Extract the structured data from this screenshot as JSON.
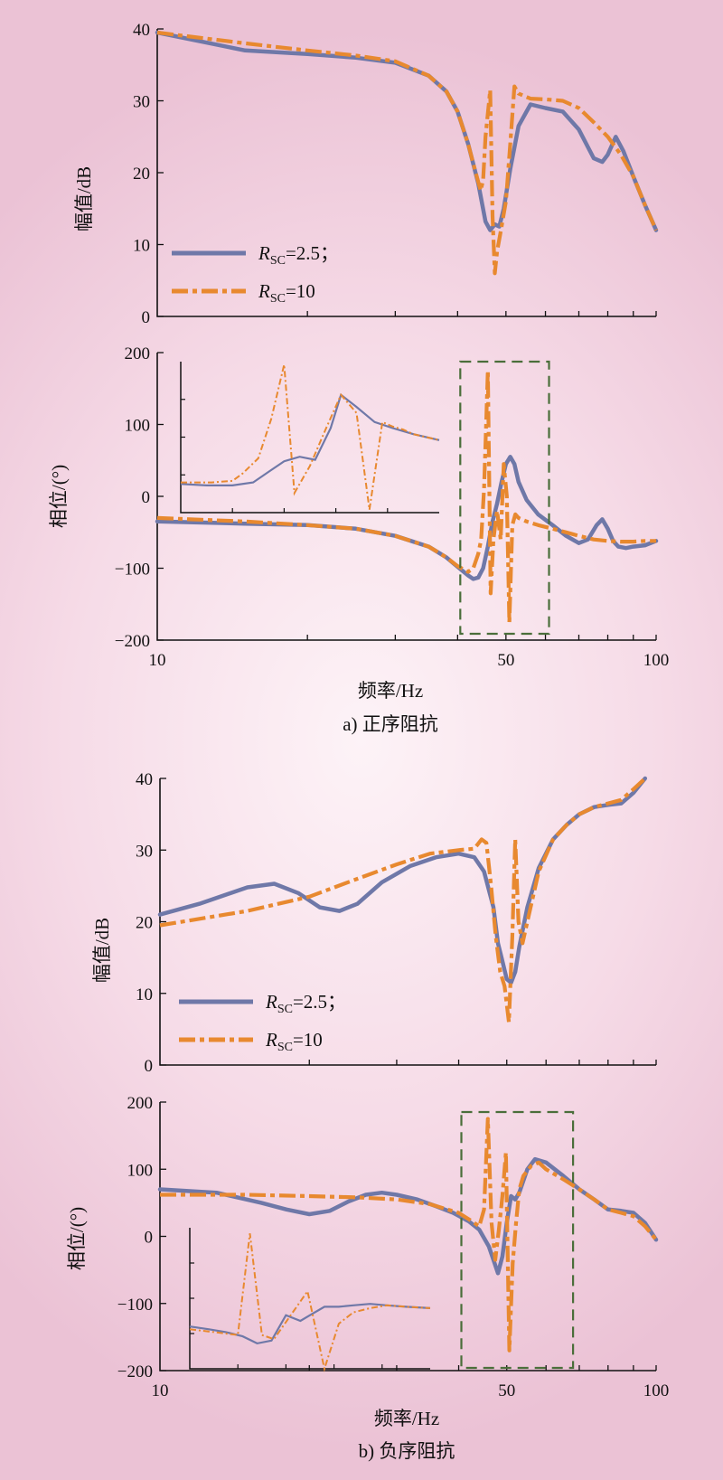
{
  "chart_data": [
    {
      "id": "a-magnitude",
      "type": "line",
      "xscale": "log",
      "xlim": [
        10,
        100
      ],
      "ylim": [
        0,
        40
      ],
      "yticks": [
        "0",
        "10",
        "20",
        "30",
        "40"
      ],
      "ylabel": "幅值/dB",
      "legend": {
        "placement": "bottom-left",
        "entries": [
          {
            "prefix": "R",
            "sub": "SC",
            "suffix": "=2.5；"
          },
          {
            "prefix": "R",
            "sub": "SC",
            "suffix": "=10"
          }
        ]
      },
      "series": [
        {
          "color": "#6f78a8",
          "style": "solid",
          "x": [
            10,
            15,
            20,
            25,
            30,
            35,
            38,
            40,
            42,
            44,
            45.5,
            46.5,
            47.5,
            48.5,
            49.5,
            51,
            53,
            56,
            60,
            65,
            70,
            75,
            78,
            80,
            83,
            86,
            90,
            95,
            100
          ],
          "y": [
            39.5,
            37.0,
            36.5,
            36.0,
            35.3,
            33.5,
            31.3,
            28.5,
            24.0,
            18.5,
            13.2,
            12.0,
            12.8,
            12.5,
            15.0,
            20.5,
            26.5,
            29.5,
            29.0,
            28.5,
            26.0,
            22.0,
            21.5,
            22.5,
            25.0,
            23.0,
            19.5,
            15.5,
            12.0
          ]
        },
        {
          "color": "#e8892f",
          "style": "dashdot",
          "x": [
            10,
            15,
            20,
            25,
            30,
            35,
            38,
            40,
            42,
            43.5,
            44.5,
            45,
            45.5,
            46.5,
            47,
            47.5,
            48,
            49,
            50,
            51,
            52,
            53,
            56,
            60,
            65,
            70,
            75,
            80,
            85,
            90,
            95,
            100
          ],
          "y": [
            39.5,
            38.0,
            37.0,
            36.3,
            35.5,
            33.5,
            31.3,
            28.5,
            24.0,
            20.0,
            17.5,
            19.0,
            25.0,
            31.5,
            14.0,
            6.0,
            9.0,
            12.5,
            16.0,
            24.0,
            32.0,
            31.0,
            30.3,
            30.2,
            30.0,
            29.0,
            27.0,
            25.0,
            22.5,
            19.5,
            15.5,
            12.0
          ]
        }
      ]
    },
    {
      "id": "a-phase",
      "type": "line",
      "xscale": "log",
      "xlim": [
        10,
        100
      ],
      "ylim": [
        -200,
        200
      ],
      "yticks": [
        "−200",
        "−100",
        "0",
        "100",
        "200"
      ],
      "xticks": [
        "10",
        "50",
        "100"
      ],
      "ylabel": "相位/(°)",
      "xlabel": "频率/Hz",
      "caption": "a) 正序阻抗",
      "series": [
        {
          "color": "#6f78a8",
          "style": "solid",
          "x": [
            10,
            15,
            20,
            25,
            30,
            35,
            38,
            40,
            42,
            43,
            44,
            45,
            46,
            47,
            48,
            49,
            50,
            51,
            52,
            53,
            55,
            58,
            62,
            66,
            70,
            73,
            76,
            78,
            80,
            82,
            84,
            87,
            90,
            95,
            100
          ],
          "y": [
            -35,
            -38,
            -40,
            -45,
            -55,
            -70,
            -85,
            -98,
            -110,
            -115,
            -113,
            -100,
            -70,
            -35,
            -10,
            20,
            45,
            55,
            45,
            20,
            -5,
            -25,
            -40,
            -55,
            -65,
            -60,
            -40,
            -32,
            -45,
            -62,
            -70,
            -72,
            -70,
            -68,
            -62
          ]
        },
        {
          "color": "#e8892f",
          "style": "dashdot",
          "x": [
            10,
            15,
            20,
            25,
            30,
            35,
            38,
            40,
            42,
            43,
            44,
            44.6,
            45.2,
            46,
            46.6,
            47.2,
            48,
            48.8,
            49.5,
            50.2,
            50.8,
            51.5,
            52.2,
            53,
            55,
            58,
            62,
            66,
            70,
            75,
            80,
            85,
            90,
            95,
            100
          ],
          "y": [
            -30,
            -35,
            -40,
            -45,
            -55,
            -70,
            -85,
            -97,
            -105,
            -100,
            -80,
            -60,
            10,
            175,
            -135,
            -60,
            -20,
            -60,
            45,
            0,
            -175,
            -40,
            -25,
            -30,
            -35,
            -40,
            -45,
            -50,
            -55,
            -60,
            -62,
            -63,
            -63,
            -62,
            -62
          ]
        }
      ],
      "inset": {
        "series": [
          {
            "color": "#6f78a8",
            "style": "solid",
            "x": [
              0,
              0.1,
              0.2,
              0.28,
              0.34,
              0.4,
              0.46,
              0.52,
              0.58,
              0.62,
              0.68,
              0.75,
              0.82,
              0.9,
              1.0
            ],
            "y": [
              0.19,
              0.18,
              0.18,
              0.2,
              0.27,
              0.34,
              0.37,
              0.35,
              0.56,
              0.78,
              0.7,
              0.6,
              0.56,
              0.52,
              0.48
            ]
          },
          {
            "color": "#e8892f",
            "style": "dashdot",
            "x": [
              0,
              0.12,
              0.2,
              0.24,
              0.3,
              0.35,
              0.4,
              0.44,
              0.5,
              0.56,
              0.62,
              0.68,
              0.73,
              0.78,
              0.82,
              0.86,
              0.9,
              1.0
            ],
            "y": [
              0.2,
              0.2,
              0.21,
              0.26,
              0.36,
              0.62,
              0.98,
              0.13,
              0.31,
              0.55,
              0.78,
              0.66,
              0.02,
              0.6,
              0.57,
              0.55,
              0.52,
              0.48
            ]
          }
        ]
      },
      "zoom_box_x": [
        40.5,
        61
      ]
    },
    {
      "id": "b-magnitude",
      "type": "line",
      "xscale": "log",
      "xlim": [
        10,
        100
      ],
      "ylim": [
        0,
        40
      ],
      "yticks": [
        "0",
        "10",
        "20",
        "30",
        "40"
      ],
      "ylabel": "幅值/dB",
      "legend": {
        "placement": "bottom-left",
        "entries": [
          {
            "prefix": "R",
            "sub": "SC",
            "suffix": "=2.5；"
          },
          {
            "prefix": "R",
            "sub": "SC",
            "suffix": "=10"
          }
        ]
      },
      "series": [
        {
          "color": "#6f78a8",
          "style": "solid",
          "x": [
            10,
            12,
            15,
            17,
            19,
            21,
            23,
            25,
            28,
            32,
            36,
            40,
            43,
            45,
            47,
            48,
            49,
            50,
            51,
            52,
            53,
            55,
            58,
            62,
            66,
            70,
            75,
            80,
            85,
            90,
            95
          ],
          "y": [
            21.0,
            22.5,
            24.8,
            25.3,
            24.0,
            22.0,
            21.5,
            22.5,
            25.5,
            27.8,
            29.0,
            29.5,
            29.0,
            27.0,
            22.0,
            17.0,
            14.5,
            12.0,
            11.5,
            13.0,
            16.5,
            22.0,
            27.5,
            31.5,
            33.5,
            35.0,
            36.0,
            36.3,
            36.5,
            38.0,
            40.0
          ]
        },
        {
          "color": "#e8892f",
          "style": "dashdot",
          "x": [
            10,
            15,
            20,
            25,
            30,
            35,
            40,
            43,
            44.5,
            45.5,
            46.5,
            47.5,
            48.5,
            49.5,
            50.5,
            51.3,
            52,
            52.8,
            53.8,
            55,
            58,
            62,
            66,
            70,
            75,
            80,
            85,
            90,
            95
          ],
          "y": [
            19.5,
            21.5,
            23.5,
            26.0,
            28.0,
            29.5,
            30.0,
            30.2,
            31.5,
            31.0,
            25.0,
            18.0,
            13.0,
            11.0,
            6.0,
            18.0,
            31.5,
            20.0,
            17.0,
            20.0,
            27.0,
            31.5,
            33.5,
            35.0,
            36.0,
            36.5,
            37.0,
            38.5,
            40.0
          ]
        }
      ]
    },
    {
      "id": "b-phase",
      "type": "line",
      "xscale": "log",
      "xlim": [
        10,
        100
      ],
      "ylim": [
        -200,
        200
      ],
      "yticks": [
        "−200",
        "−100",
        "0",
        "100",
        "200"
      ],
      "xticks": [
        "10",
        "50",
        "100"
      ],
      "ylabel": "相位/(°)",
      "xlabel": "频率/Hz",
      "caption": "b) 负序阻抗",
      "series": [
        {
          "color": "#6f78a8",
          "style": "solid",
          "x": [
            10,
            13,
            16,
            18,
            20,
            22,
            24,
            26,
            28,
            30,
            33,
            36,
            39,
            42,
            44,
            46,
            47,
            48,
            49,
            50,
            51,
            52,
            53,
            55,
            57,
            60,
            65,
            70,
            75,
            80,
            85,
            90,
            95,
            100
          ],
          "y": [
            70,
            65,
            50,
            40,
            33,
            38,
            52,
            62,
            65,
            62,
            55,
            45,
            35,
            22,
            10,
            -15,
            -35,
            -55,
            -30,
            20,
            60,
            55,
            65,
            100,
            115,
            110,
            90,
            70,
            55,
            40,
            38,
            35,
            20,
            -5
          ]
        },
        {
          "color": "#e8892f",
          "style": "dashdot",
          "x": [
            10,
            15,
            20,
            25,
            30,
            35,
            40,
            42,
            44,
            45,
            45.8,
            46.6,
            47.4,
            48.2,
            49,
            49.8,
            50.6,
            51.4,
            52.2,
            53,
            54,
            56,
            58,
            60,
            65,
            70,
            75,
            80,
            85,
            90,
            95,
            100
          ],
          "y": [
            62,
            62,
            60,
            58,
            55,
            48,
            35,
            25,
            15,
            40,
            175,
            20,
            -35,
            10,
            60,
            125,
            -170,
            -40,
            20,
            70,
            90,
            105,
            110,
            100,
            85,
            70,
            55,
            40,
            35,
            30,
            15,
            -5
          ]
        }
      ],
      "inset": {
        "series": [
          {
            "color": "#6f78a8",
            "style": "solid",
            "x": [
              0,
              0.08,
              0.15,
              0.22,
              0.28,
              0.34,
              0.4,
              0.46,
              0.5,
              0.56,
              0.62,
              0.68,
              0.75,
              0.82,
              0.9,
              1.0
            ],
            "y": [
              0.3,
              0.28,
              0.26,
              0.23,
              0.18,
              0.2,
              0.38,
              0.34,
              0.38,
              0.44,
              0.44,
              0.45,
              0.46,
              0.45,
              0.44,
              0.43
            ]
          },
          {
            "color": "#e8892f",
            "style": "dashdot",
            "x": [
              0,
              0.1,
              0.2,
              0.25,
              0.3,
              0.35,
              0.42,
              0.49,
              0.56,
              0.62,
              0.68,
              0.75,
              0.82,
              0.9,
              1.0
            ],
            "y": [
              0.28,
              0.26,
              0.24,
              0.96,
              0.24,
              0.21,
              0.38,
              0.55,
              0.0,
              0.32,
              0.4,
              0.43,
              0.45,
              0.44,
              0.43
            ]
          }
        ]
      },
      "zoom_box_x": [
        40.5,
        68
      ]
    }
  ]
}
